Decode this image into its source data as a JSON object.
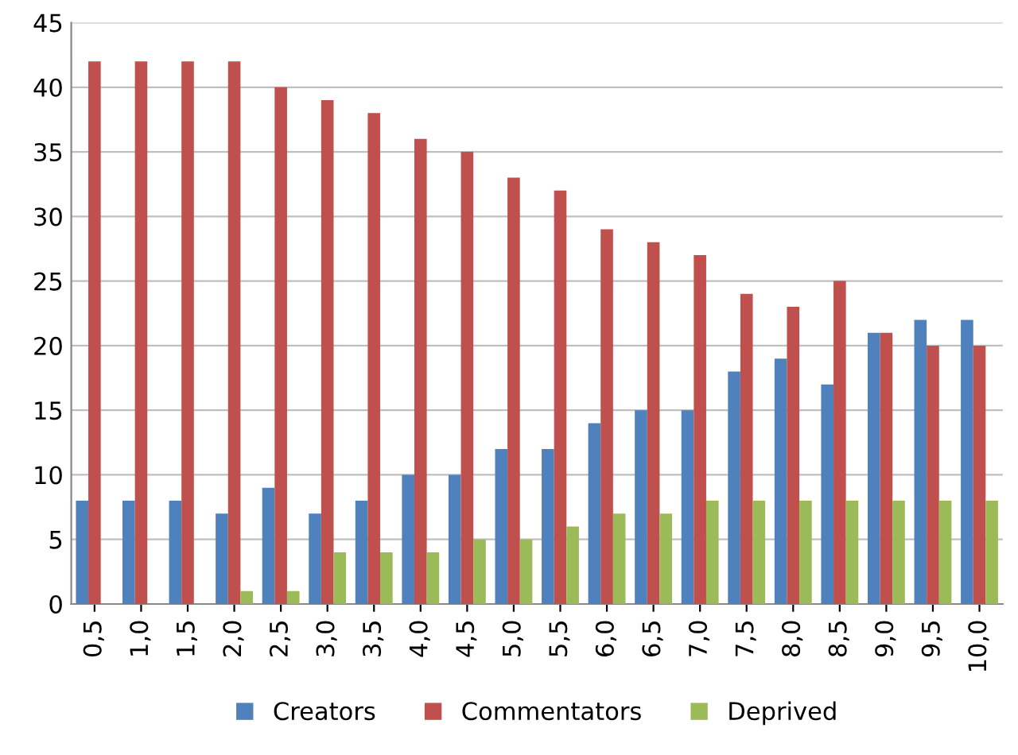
{
  "chart_data": {
    "type": "bar",
    "categories": [
      "0,5",
      "1,0",
      "1,5",
      "2,0",
      "2,5",
      "3,0",
      "3,5",
      "4,0",
      "4,5",
      "5,0",
      "5,5",
      "6,0",
      "6,5",
      "7,0",
      "7,5",
      "8,0",
      "8,5",
      "9,0",
      "9,5",
      "10,0"
    ],
    "series": [
      {
        "name": "Creators",
        "color": "#4f81bd",
        "values": [
          8,
          8,
          8,
          7,
          9,
          7,
          8,
          10,
          10,
          12,
          12,
          14,
          15,
          15,
          18,
          19,
          17,
          21,
          22,
          22
        ]
      },
      {
        "name": "Commentators",
        "color": "#c0504d",
        "values": [
          42,
          42,
          42,
          42,
          40,
          39,
          38,
          36,
          35,
          33,
          32,
          29,
          28,
          27,
          24,
          23,
          25,
          21,
          20,
          20
        ]
      },
      {
        "name": "Deprived",
        "color": "#9bbb59",
        "values": [
          0,
          0,
          0,
          1,
          1,
          4,
          4,
          4,
          5,
          5,
          6,
          7,
          7,
          8,
          8,
          8,
          8,
          8,
          8,
          8
        ]
      }
    ],
    "ylim": [
      0,
      45
    ],
    "yticks": [
      0,
      5,
      10,
      15,
      20,
      25,
      30,
      35,
      40,
      45
    ],
    "grid": "y",
    "legend": "bottom"
  }
}
